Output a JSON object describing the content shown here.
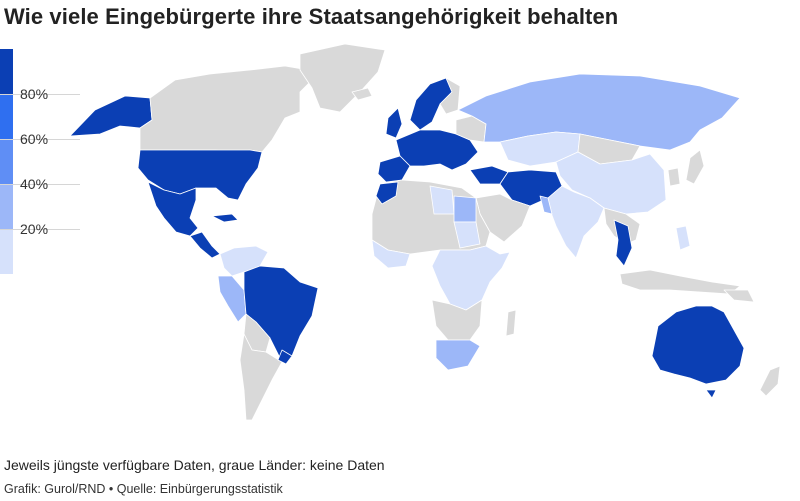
{
  "title": "Wie viele Eingebürgerte ihre Staatsangehörigkeit behalten",
  "legend": {
    "bins": [
      {
        "label": "",
        "color": "#0b3fb4"
      },
      {
        "label": "80%",
        "color": "#2f6ff0"
      },
      {
        "label": "60%",
        "color": "#5f8ef5"
      },
      {
        "label": "40%",
        "color": "#9cb7f8"
      },
      {
        "label": "20%",
        "color": "#d6e1fb"
      }
    ],
    "nodata_color": "#d9d9d9"
  },
  "map": {
    "countries": [
      {
        "name": "USA",
        "share": 1.0
      },
      {
        "name": "Mexiko",
        "share": 1.0
      },
      {
        "name": "Brasilien",
        "share": 1.0
      },
      {
        "name": "Australien",
        "share": 1.0
      },
      {
        "name": "Kanada",
        "share": null
      },
      {
        "name": "Russland",
        "share": 0.3
      },
      {
        "name": "China",
        "share": 0.1
      },
      {
        "name": "Indien",
        "share": 0.15
      },
      {
        "name": "Iran",
        "share": 1.0
      },
      {
        "name": "Thailand",
        "share": 1.0
      },
      {
        "name": "Ägypten",
        "share": 0.4
      },
      {
        "name": "Südafrika",
        "share": 0.45
      },
      {
        "name": "Peru",
        "share": 0.4
      }
    ]
  },
  "footer": {
    "note": "Jeweils jüngste verfügbare Daten, graue Länder: keine Daten",
    "credit": "Grafik: Gurol/RND • Quelle: Einbürgerungsstatistik"
  }
}
